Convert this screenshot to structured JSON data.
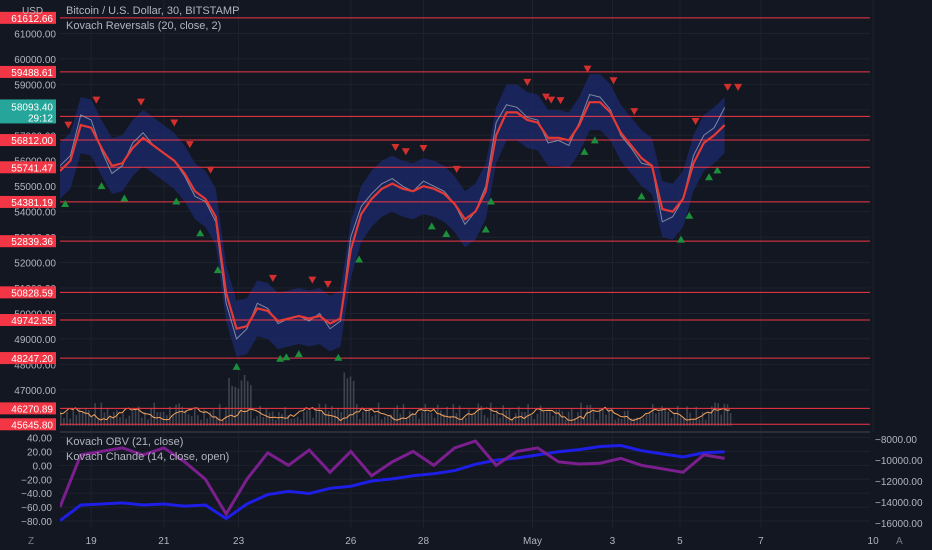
{
  "header": {
    "currency": "USD",
    "symbol_title": "Bitcoin / U.S. Dollar, 30, BITSTAMP",
    "indicator_main": "Kovach Reversals (20, close, 2)"
  },
  "lower_pane": {
    "indicator_1": "Kovach OBV (21, close)",
    "indicator_2": "Kovach Chande (14, close, open)"
  },
  "colors": {
    "background": "#131722",
    "grid": "#1e222d",
    "level_line": "#f23645",
    "price_tag": "#f23645",
    "current_tag": "#26a69a",
    "ma_line": "#e53935",
    "band_fill": "#1c2a6e",
    "obv": "#1e1ee6",
    "chande": "#7b1f8e",
    "volume": "#5d606b",
    "vol_line": "#f7a35c",
    "up_marker": "#1b8f3a",
    "down_marker": "#d32f2f"
  },
  "chart_data": [
    {
      "type": "line",
      "name": "price-pane",
      "y_unit": "USD",
      "ylim": [
        45500,
        62000
      ],
      "y_ticks": [
        61000,
        60000,
        59000,
        58000,
        57000,
        56000,
        55000,
        54000,
        53000,
        52000,
        51000,
        50000,
        49000,
        48000,
        47000
      ],
      "y_tick_labels": [
        "61000.00",
        "60000.00",
        "59000.00",
        "58000.00",
        "57000.00",
        "56000.00",
        "55000.00",
        "54000.00",
        "53000.00",
        "52000.00",
        "51000.00",
        "50000.00",
        "49000.00",
        "48000.00",
        "47000.00"
      ],
      "x_tick_labels": [
        "19",
        "21",
        "23",
        "26",
        "28",
        "May",
        "3",
        "5",
        "7",
        "10"
      ],
      "x_tick_index": [
        30,
        100,
        172,
        280,
        350,
        455,
        532,
        597,
        675,
        783
      ],
      "levels": [
        61612.66,
        59488.61,
        57742.49,
        56812.0,
        55741.47,
        54381.19,
        52839.36,
        50828.59,
        49742.55,
        48247.2,
        46270.89,
        45645.8
      ],
      "level_labels": [
        "61612.66",
        "59488.61",
        "57742.49",
        "56812.00",
        "55741.47",
        "54381.19",
        "52839.36",
        "50828.59",
        "49742.55",
        "48247.20",
        "46270.89",
        "45645.80"
      ],
      "current_price": "58093.40",
      "countdown": "29:12",
      "series": [
        {
          "kind": "close",
          "x": [
            0,
            10,
            20,
            30,
            40,
            50,
            60,
            70,
            80,
            90,
            100,
            110,
            120,
            130,
            140,
            150,
            160,
            170,
            180,
            190,
            200,
            210,
            220,
            230,
            240,
            250,
            260,
            270,
            280,
            290,
            300,
            310,
            320,
            330,
            340,
            350,
            360,
            370,
            380,
            390,
            400,
            410,
            420,
            430,
            440,
            450,
            460,
            470,
            480,
            490,
            500,
            510,
            520,
            530,
            540,
            550,
            560,
            570,
            580,
            590,
            600,
            610,
            620,
            630,
            640
          ],
          "values": [
            55800,
            56200,
            57800,
            57600,
            56400,
            55500,
            55800,
            56700,
            57100,
            56600,
            56300,
            56000,
            55400,
            54600,
            54400,
            53600,
            50400,
            49000,
            49400,
            50400,
            50200,
            49600,
            49800,
            49900,
            49700,
            50000,
            49400,
            49700,
            53000,
            54200,
            54700,
            55100,
            55300,
            55000,
            54800,
            55200,
            55000,
            54800,
            54300,
            53500,
            54000,
            55000,
            57500,
            58200,
            58100,
            57700,
            57600,
            56700,
            56800,
            56600,
            57500,
            58600,
            58500,
            58000,
            57000,
            56500,
            55900,
            55800,
            53600,
            53800,
            54500,
            56200,
            57000,
            57300,
            58093
          ]
        },
        {
          "kind": "moving-average",
          "x": [
            0,
            10,
            20,
            30,
            40,
            50,
            60,
            70,
            80,
            90,
            100,
            110,
            120,
            130,
            140,
            150,
            160,
            170,
            180,
            190,
            200,
            210,
            220,
            230,
            240,
            250,
            260,
            270,
            280,
            290,
            300,
            310,
            320,
            330,
            340,
            350,
            360,
            370,
            380,
            390,
            400,
            410,
            420,
            430,
            440,
            450,
            460,
            470,
            480,
            490,
            500,
            510,
            520,
            530,
            540,
            550,
            560,
            570,
            580,
            590,
            600,
            610,
            620,
            630,
            640
          ],
          "values": [
            55600,
            56000,
            57400,
            57300,
            56500,
            55800,
            55900,
            56500,
            56900,
            56600,
            56300,
            56000,
            55500,
            54800,
            54500,
            53800,
            50800,
            49400,
            49500,
            50200,
            50100,
            49700,
            49800,
            49900,
            49800,
            49900,
            49600,
            49800,
            52500,
            53900,
            54500,
            54900,
            55100,
            54900,
            54800,
            55000,
            54900,
            54700,
            54300,
            53700,
            54000,
            54800,
            57000,
            57900,
            57900,
            57600,
            57500,
            56900,
            56900,
            56800,
            57400,
            58300,
            58300,
            57900,
            57100,
            56600,
            56100,
            55800,
            54100,
            54000,
            54500,
            55900,
            56700,
            57000,
            57400
          ]
        }
      ],
      "markers_up_x": [
        5,
        40,
        62,
        112,
        135,
        152,
        170,
        212,
        218,
        230,
        268,
        288,
        358,
        372,
        410,
        415,
        505,
        515,
        560,
        598,
        606,
        625,
        633
      ],
      "markers_down_x": [
        8,
        35,
        78,
        110,
        125,
        145,
        205,
        243,
        258,
        323,
        333,
        350,
        382,
        450,
        468,
        473,
        482,
        508,
        533,
        553,
        612,
        643,
        653
      ]
    },
    {
      "type": "line",
      "name": "oscillator-pane",
      "left_ylim": [
        -90,
        45
      ],
      "left_ticks": [
        40,
        20,
        0,
        -20,
        -40,
        -60,
        -80
      ],
      "left_tick_labels": [
        "40.00",
        "20.00",
        "0.00",
        "−20.00",
        "−40.00",
        "−60.00",
        "−80.00"
      ],
      "right_ylim": [
        -16500,
        -7500
      ],
      "right_ticks": [
        -8000,
        -10000,
        -12000,
        -14000,
        -16000
      ],
      "right_tick_labels": [
        "−8000.00",
        "−10000.00",
        "−12000.00",
        "−14000.00",
        "−16000.00"
      ],
      "series": [
        {
          "name": "Kovach OBV (21, close)",
          "axis": "right",
          "x": [
            0,
            20,
            40,
            60,
            80,
            100,
            120,
            140,
            160,
            180,
            200,
            220,
            240,
            260,
            280,
            300,
            320,
            340,
            360,
            380,
            400,
            420,
            440,
            460,
            480,
            500,
            520,
            540,
            560,
            580,
            600,
            620,
            640
          ],
          "values": [
            -15800,
            -14300,
            -14200,
            -14100,
            -14300,
            -14200,
            -14400,
            -14300,
            -15600,
            -14200,
            -13300,
            -13000,
            -13200,
            -12700,
            -12500,
            -12000,
            -11800,
            -11500,
            -11300,
            -11000,
            -10400,
            -10000,
            -9800,
            -9500,
            -9200,
            -9000,
            -8700,
            -8600,
            -9100,
            -9400,
            -9700,
            -9300,
            -9200
          ]
        },
        {
          "name": "Kovach Chande (14, close, open)",
          "axis": "left",
          "x": [
            0,
            20,
            40,
            60,
            80,
            100,
            120,
            140,
            160,
            180,
            200,
            220,
            240,
            260,
            280,
            300,
            320,
            340,
            360,
            380,
            400,
            420,
            440,
            460,
            480,
            500,
            520,
            540,
            560,
            580,
            600,
            620,
            640
          ],
          "values": [
            -60,
            15,
            20,
            25,
            15,
            25,
            5,
            -20,
            -70,
            -20,
            18,
            0,
            22,
            -10,
            20,
            -15,
            5,
            20,
            0,
            25,
            35,
            0,
            20,
            25,
            5,
            2,
            3,
            10,
            0,
            -5,
            -10,
            15,
            10
          ]
        }
      ]
    }
  ]
}
